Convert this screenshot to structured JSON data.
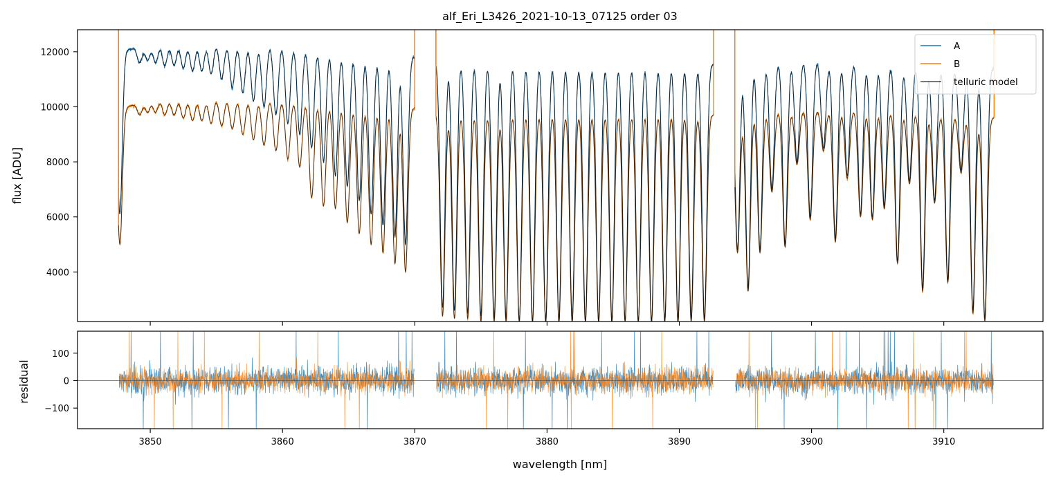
{
  "chart_data": [
    {
      "type": "line",
      "panel": "top",
      "title": "alf_Eri_L3426_2021-10-13_07125  order 03",
      "xlabel": "",
      "ylabel": "flux [ADU]",
      "xlim": [
        3844.5,
        3917.5
      ],
      "ylim": [
        2200,
        12800
      ],
      "yticks": [
        4000,
        6000,
        8000,
        10000,
        12000
      ],
      "ytick_labels": [
        "4000",
        "6000",
        "8000",
        "10000",
        "12000"
      ],
      "xticks": [
        3850,
        3860,
        3870,
        3880,
        3890,
        3900,
        3910
      ],
      "grid": false,
      "legend_position": "top-right",
      "segments": [
        [
          3847.6,
          3870.0
        ],
        [
          3871.6,
          3892.6
        ],
        [
          3894.2,
          3913.8
        ]
      ],
      "series": [
        {
          "name": "A",
          "color": "#1f77b4",
          "continuum": {
            "x": [
              3847.6,
              3850,
              3855,
              3860,
              3865,
              3870,
              3872,
              3880,
              3890,
              3892.6,
              3894.2,
              3900,
              3905,
              3910,
              3913.8
            ],
            "y": [
              12000,
              12250,
              12300,
              12250,
              12000,
              11800,
              11700,
              11650,
              11600,
              11550,
              11650,
              11700,
              11600,
              11400,
              11400
            ]
          },
          "absorption_lines": [
            {
              "x": 3847.7,
              "depth_to": 6100
            },
            {
              "x": 3849.2,
              "depth_to": 11600
            },
            {
              "x": 3849.8,
              "depth_to": 11700
            },
            {
              "x": 3850.4,
              "depth_to": 11600
            },
            {
              "x": 3851.1,
              "depth_to": 11500
            },
            {
              "x": 3851.8,
              "depth_to": 11500
            },
            {
              "x": 3852.5,
              "depth_to": 11400
            },
            {
              "x": 3853.2,
              "depth_to": 11300
            },
            {
              "x": 3853.9,
              "depth_to": 11300
            },
            {
              "x": 3854.6,
              "depth_to": 11200
            },
            {
              "x": 3855.4,
              "depth_to": 11000
            },
            {
              "x": 3856.2,
              "depth_to": 10700
            },
            {
              "x": 3857.0,
              "depth_to": 10500
            },
            {
              "x": 3857.8,
              "depth_to": 10200
            },
            {
              "x": 3858.6,
              "depth_to": 10000
            },
            {
              "x": 3859.5,
              "depth_to": 9700
            },
            {
              "x": 3860.4,
              "depth_to": 9400
            },
            {
              "x": 3861.3,
              "depth_to": 9000
            },
            {
              "x": 3862.2,
              "depth_to": 8500
            },
            {
              "x": 3863.1,
              "depth_to": 8000
            },
            {
              "x": 3864.0,
              "depth_to": 7500
            },
            {
              "x": 3864.9,
              "depth_to": 7100
            },
            {
              "x": 3865.8,
              "depth_to": 6600
            },
            {
              "x": 3866.7,
              "depth_to": 6100
            },
            {
              "x": 3867.6,
              "depth_to": 5700
            },
            {
              "x": 3868.5,
              "depth_to": 5300
            },
            {
              "x": 3869.3,
              "depth_to": 5000
            },
            {
              "x": 3872.1,
              "depth_to": 2700
            },
            {
              "x": 3873.0,
              "depth_to": 2600
            },
            {
              "x": 3874.0,
              "depth_to": 2500
            },
            {
              "x": 3875.0,
              "depth_to": 2400
            },
            {
              "x": 3876.0,
              "depth_to": 2300
            },
            {
              "x": 3876.9,
              "depth_to": 2300
            },
            {
              "x": 3877.9,
              "depth_to": 2200
            },
            {
              "x": 3878.9,
              "depth_to": 2200
            },
            {
              "x": 3879.9,
              "depth_to": 2200
            },
            {
              "x": 3880.9,
              "depth_to": 2200
            },
            {
              "x": 3881.9,
              "depth_to": 2200
            },
            {
              "x": 3882.9,
              "depth_to": 2200
            },
            {
              "x": 3883.9,
              "depth_to": 2200
            },
            {
              "x": 3884.9,
              "depth_to": 2200
            },
            {
              "x": 3885.9,
              "depth_to": 2200
            },
            {
              "x": 3886.9,
              "depth_to": 2200
            },
            {
              "x": 3887.9,
              "depth_to": 2200
            },
            {
              "x": 3888.9,
              "depth_to": 2200
            },
            {
              "x": 3889.9,
              "depth_to": 2200
            },
            {
              "x": 3890.9,
              "depth_to": 2300
            },
            {
              "x": 3891.9,
              "depth_to": 2300
            },
            {
              "x": 3894.4,
              "depth_to": 4800
            },
            {
              "x": 3895.2,
              "depth_to": 3400
            },
            {
              "x": 3896.1,
              "depth_to": 4800
            },
            {
              "x": 3897.0,
              "depth_to": 7000
            },
            {
              "x": 3898.0,
              "depth_to": 5000
            },
            {
              "x": 3898.9,
              "depth_to": 8000
            },
            {
              "x": 3899.9,
              "depth_to": 6000
            },
            {
              "x": 3900.9,
              "depth_to": 8500
            },
            {
              "x": 3901.8,
              "depth_to": 5200
            },
            {
              "x": 3902.7,
              "depth_to": 7500
            },
            {
              "x": 3903.7,
              "depth_to": 6100
            },
            {
              "x": 3904.6,
              "depth_to": 6000
            },
            {
              "x": 3905.5,
              "depth_to": 6400
            },
            {
              "x": 3906.5,
              "depth_to": 4400
            },
            {
              "x": 3907.4,
              "depth_to": 7300
            },
            {
              "x": 3908.4,
              "depth_to": 3400
            },
            {
              "x": 3909.3,
              "depth_to": 6600
            },
            {
              "x": 3910.3,
              "depth_to": 3700
            },
            {
              "x": 3911.3,
              "depth_to": 7700
            },
            {
              "x": 3912.2,
              "depth_to": 2600
            },
            {
              "x": 3913.1,
              "depth_to": 2300
            }
          ]
        },
        {
          "name": "B",
          "color": "#ff7f0e",
          "continuum": {
            "x": [
              3847.6,
              3850,
              3855,
              3860,
              3865,
              3870,
              3872,
              3880,
              3890,
              3892.6,
              3894.2,
              3900,
              3905,
              3910,
              3913.8
            ],
            "y": [
              9900,
              10250,
              10300,
              10250,
              10100,
              9950,
              9800,
              9850,
              9850,
              9700,
              9850,
              9900,
              9900,
              9700,
              9600
            ]
          },
          "absorption_lines": [
            {
              "x": 3847.7,
              "depth_to": 5000
            },
            {
              "x": 3849.2,
              "depth_to": 9700
            },
            {
              "x": 3849.8,
              "depth_to": 9800
            },
            {
              "x": 3850.4,
              "depth_to": 9800
            },
            {
              "x": 3851.1,
              "depth_to": 9700
            },
            {
              "x": 3851.8,
              "depth_to": 9700
            },
            {
              "x": 3852.5,
              "depth_to": 9600
            },
            {
              "x": 3853.2,
              "depth_to": 9500
            },
            {
              "x": 3853.9,
              "depth_to": 9500
            },
            {
              "x": 3854.6,
              "depth_to": 9400
            },
            {
              "x": 3855.4,
              "depth_to": 9300
            },
            {
              "x": 3856.2,
              "depth_to": 9200
            },
            {
              "x": 3857.0,
              "depth_to": 9000
            },
            {
              "x": 3857.8,
              "depth_to": 8800
            },
            {
              "x": 3858.6,
              "depth_to": 8600
            },
            {
              "x": 3859.5,
              "depth_to": 8400
            },
            {
              "x": 3860.4,
              "depth_to": 8100
            },
            {
              "x": 3861.3,
              "depth_to": 7800
            },
            {
              "x": 3862.2,
              "depth_to": 6700
            },
            {
              "x": 3863.1,
              "depth_to": 6400
            },
            {
              "x": 3864.0,
              "depth_to": 6300
            },
            {
              "x": 3864.9,
              "depth_to": 5800
            },
            {
              "x": 3865.8,
              "depth_to": 5400
            },
            {
              "x": 3866.7,
              "depth_to": 5000
            },
            {
              "x": 3867.6,
              "depth_to": 4700
            },
            {
              "x": 3868.5,
              "depth_to": 4300
            },
            {
              "x": 3869.3,
              "depth_to": 4000
            },
            {
              "x": 3872.1,
              "depth_to": 2400
            },
            {
              "x": 3873.0,
              "depth_to": 2300
            },
            {
              "x": 3874.0,
              "depth_to": 2300
            },
            {
              "x": 3875.0,
              "depth_to": 2200
            },
            {
              "x": 3876.0,
              "depth_to": 2200
            },
            {
              "x": 3876.9,
              "depth_to": 2200
            },
            {
              "x": 3877.9,
              "depth_to": 2200
            },
            {
              "x": 3878.9,
              "depth_to": 2200
            },
            {
              "x": 3879.9,
              "depth_to": 2200
            },
            {
              "x": 3880.9,
              "depth_to": 2200
            },
            {
              "x": 3881.9,
              "depth_to": 2200
            },
            {
              "x": 3882.9,
              "depth_to": 2200
            },
            {
              "x": 3883.9,
              "depth_to": 2200
            },
            {
              "x": 3884.9,
              "depth_to": 2200
            },
            {
              "x": 3885.9,
              "depth_to": 2200
            },
            {
              "x": 3886.9,
              "depth_to": 2200
            },
            {
              "x": 3887.9,
              "depth_to": 2200
            },
            {
              "x": 3888.9,
              "depth_to": 2200
            },
            {
              "x": 3889.9,
              "depth_to": 2200
            },
            {
              "x": 3890.9,
              "depth_to": 2200
            },
            {
              "x": 3891.9,
              "depth_to": 2200
            },
            {
              "x": 3894.4,
              "depth_to": 4700
            },
            {
              "x": 3895.2,
              "depth_to": 3300
            },
            {
              "x": 3896.1,
              "depth_to": 4700
            },
            {
              "x": 3897.0,
              "depth_to": 6900
            },
            {
              "x": 3898.0,
              "depth_to": 4900
            },
            {
              "x": 3898.9,
              "depth_to": 7900
            },
            {
              "x": 3899.9,
              "depth_to": 5900
            },
            {
              "x": 3900.9,
              "depth_to": 8400
            },
            {
              "x": 3901.8,
              "depth_to": 5100
            },
            {
              "x": 3902.7,
              "depth_to": 7400
            },
            {
              "x": 3903.7,
              "depth_to": 6000
            },
            {
              "x": 3904.6,
              "depth_to": 5900
            },
            {
              "x": 3905.5,
              "depth_to": 6300
            },
            {
              "x": 3906.5,
              "depth_to": 4300
            },
            {
              "x": 3907.4,
              "depth_to": 7200
            },
            {
              "x": 3908.4,
              "depth_to": 3300
            },
            {
              "x": 3909.3,
              "depth_to": 6500
            },
            {
              "x": 3910.3,
              "depth_to": 3600
            },
            {
              "x": 3911.3,
              "depth_to": 7600
            },
            {
              "x": 3912.2,
              "depth_to": 2500
            },
            {
              "x": 3913.1,
              "depth_to": 2200
            }
          ]
        },
        {
          "name": "telluric model",
          "color": "#000000",
          "follows": [
            "A",
            "B"
          ]
        }
      ]
    },
    {
      "type": "line",
      "panel": "bottom",
      "title": "",
      "xlabel": "wavelength [nm]",
      "ylabel": "residual",
      "xlim": [
        3844.5,
        3917.5
      ],
      "ylim": [
        -175,
        180
      ],
      "yticks": [
        -100,
        0,
        100
      ],
      "ytick_labels": [
        "−100",
        "0",
        "100"
      ],
      "xticks": [
        3850,
        3860,
        3870,
        3880,
        3890,
        3900,
        3910
      ],
      "xtick_labels": [
        "3850",
        "3860",
        "3870",
        "3880",
        "3890",
        "3900",
        "3910"
      ],
      "zero_line": 0,
      "grid": false,
      "series": [
        {
          "name": "A",
          "color": "#1f77b4",
          "noise_amplitude": 45
        },
        {
          "name": "B",
          "color": "#ff7f0e",
          "noise_amplitude": 40
        }
      ]
    }
  ]
}
